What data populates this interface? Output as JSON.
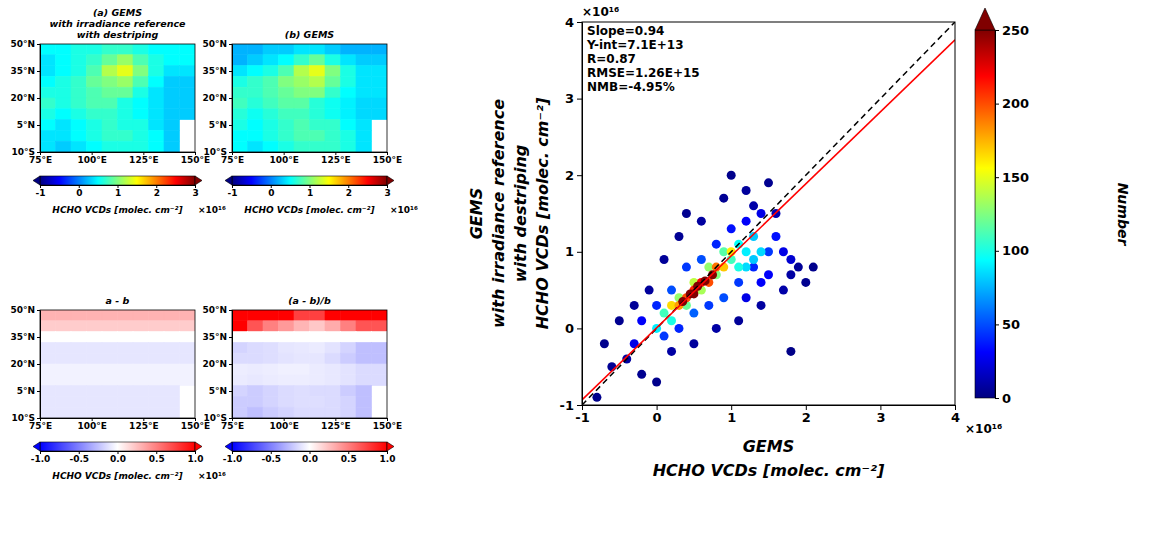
{
  "chart_data": [
    {
      "type": "heatmap",
      "title": [
        "(a) GEMS",
        "with irradiance reference",
        "with destriping"
      ],
      "lon_edges": [
        75,
        82.5,
        90,
        97.5,
        105,
        112.5,
        120,
        127.5,
        135,
        142.5,
        150
      ],
      "lat_edges": [
        50,
        44,
        38,
        32,
        26,
        20,
        14,
        8,
        2,
        -4,
        -10
      ],
      "values": [
        [
          0.5,
          0.5,
          0.6,
          0.6,
          0.7,
          0.7,
          0.6,
          0.5,
          0.5,
          0.5
        ],
        [
          0.4,
          0.5,
          0.6,
          0.7,
          0.9,
          1.1,
          0.8,
          0.6,
          0.5,
          0.5
        ],
        [
          0.4,
          0.5,
          0.6,
          0.8,
          1.2,
          1.4,
          1.0,
          0.6,
          0.4,
          0.4
        ],
        [
          0.5,
          0.6,
          0.7,
          0.9,
          1.0,
          1.1,
          0.8,
          0.5,
          0.3,
          0.3
        ],
        [
          0.6,
          0.6,
          0.7,
          0.8,
          0.9,
          0.9,
          0.6,
          0.4,
          0.3,
          0.3
        ],
        [
          0.7,
          0.6,
          0.7,
          0.8,
          0.8,
          0.6,
          0.5,
          0.4,
          0.3,
          0.3
        ],
        [
          0.6,
          0.5,
          0.6,
          0.7,
          0.7,
          0.6,
          0.5,
          0.4,
          0.3,
          0.3
        ],
        [
          0.5,
          0.4,
          0.5,
          0.6,
          0.7,
          0.6,
          0.6,
          0.4,
          0.3,
          null
        ],
        [
          0.4,
          0.4,
          0.5,
          0.6,
          0.7,
          0.7,
          0.6,
          0.5,
          0.3,
          null
        ],
        [
          0.4,
          0.3,
          0.4,
          0.5,
          0.6,
          0.6,
          0.6,
          0.5,
          0.3,
          null
        ]
      ],
      "xlim": [
        75,
        150
      ],
      "ylim": [
        -10,
        50
      ],
      "xticks": [
        {
          "value": 75,
          "label": "75°E"
        },
        {
          "value": 100,
          "label": "100°E"
        },
        {
          "value": 125,
          "label": "125°E"
        },
        {
          "value": 150,
          "label": "150°E"
        }
      ],
      "yticks": [
        {
          "value": -10,
          "label": "10°S"
        },
        {
          "value": 5,
          "label": "5°N"
        },
        {
          "value": 20,
          "label": "20°N"
        },
        {
          "value": 35,
          "label": "35°N"
        },
        {
          "value": 50,
          "label": "50°N"
        }
      ],
      "colorbar": {
        "range": [
          -1,
          3
        ],
        "ticks": [
          -1,
          0,
          1,
          2,
          3
        ],
        "label": "HCHO VCDs [molec. cm⁻²]",
        "multiplier": "×10¹⁶"
      }
    },
    {
      "type": "heatmap",
      "title": [
        "(b) GEMS"
      ],
      "lon_edges": [
        75,
        82.5,
        90,
        97.5,
        105,
        112.5,
        120,
        127.5,
        135,
        142.5,
        150
      ],
      "lat_edges": [
        50,
        44,
        38,
        32,
        26,
        20,
        14,
        8,
        2,
        -4,
        -10
      ],
      "values": [
        [
          0.2,
          0.2,
          0.3,
          0.3,
          0.4,
          0.4,
          0.3,
          0.2,
          0.2,
          0.2
        ],
        [
          0.2,
          0.3,
          0.4,
          0.5,
          0.7,
          0.9,
          0.6,
          0.4,
          0.3,
          0.3
        ],
        [
          0.4,
          0.5,
          0.6,
          0.8,
          1.2,
          1.4,
          1.0,
          0.6,
          0.4,
          0.4
        ],
        [
          0.6,
          0.7,
          0.8,
          1.0,
          1.1,
          1.2,
          0.9,
          0.6,
          0.4,
          0.4
        ],
        [
          0.7,
          0.7,
          0.8,
          0.9,
          1.0,
          1.0,
          0.7,
          0.5,
          0.4,
          0.4
        ],
        [
          0.75,
          0.65,
          0.75,
          0.85,
          0.85,
          0.65,
          0.55,
          0.45,
          0.35,
          0.35
        ],
        [
          0.65,
          0.55,
          0.65,
          0.75,
          0.75,
          0.65,
          0.55,
          0.45,
          0.35,
          0.35
        ],
        [
          0.6,
          0.5,
          0.6,
          0.7,
          0.8,
          0.7,
          0.7,
          0.5,
          0.4,
          null
        ],
        [
          0.5,
          0.5,
          0.6,
          0.7,
          0.8,
          0.8,
          0.7,
          0.6,
          0.4,
          null
        ],
        [
          0.5,
          0.4,
          0.5,
          0.6,
          0.7,
          0.7,
          0.7,
          0.6,
          0.4,
          null
        ]
      ],
      "xlim": [
        75,
        150
      ],
      "ylim": [
        -10,
        50
      ],
      "xticks": [
        {
          "value": 75,
          "label": "75°E"
        },
        {
          "value": 100,
          "label": "100°E"
        },
        {
          "value": 125,
          "label": "125°E"
        },
        {
          "value": 150,
          "label": "150°E"
        }
      ],
      "yticks": [
        {
          "value": -10,
          "label": "10°S"
        },
        {
          "value": 5,
          "label": "5°N"
        },
        {
          "value": 20,
          "label": "20°N"
        },
        {
          "value": 35,
          "label": "35°N"
        },
        {
          "value": 50,
          "label": "50°N"
        }
      ],
      "colorbar": {
        "range": [
          -1,
          3
        ],
        "ticks": [
          -1,
          0,
          1,
          2,
          3
        ],
        "label": "HCHO VCDs [molec. cm⁻²]",
        "multiplier": "×10¹⁶"
      }
    },
    {
      "type": "heatmap",
      "title": [
        "a - b"
      ],
      "lon_edges": [
        75,
        82.5,
        90,
        97.5,
        105,
        112.5,
        120,
        127.5,
        135,
        142.5,
        150
      ],
      "lat_edges": [
        50,
        44,
        38,
        32,
        26,
        20,
        14,
        8,
        2,
        -4,
        -10
      ],
      "values": [
        [
          0.3,
          0.3,
          0.3,
          0.3,
          0.3,
          0.3,
          0.3,
          0.3,
          0.3,
          0.3
        ],
        [
          0.2,
          0.2,
          0.2,
          0.2,
          0.2,
          0.2,
          0.2,
          0.2,
          0.2,
          0.2
        ],
        [
          0,
          0,
          0,
          0,
          0,
          0,
          0,
          0,
          0,
          0
        ],
        [
          -0.1,
          -0.1,
          -0.1,
          -0.1,
          -0.1,
          -0.1,
          -0.1,
          -0.1,
          -0.1,
          -0.1
        ],
        [
          -0.1,
          -0.1,
          -0.1,
          -0.1,
          -0.1,
          -0.1,
          -0.1,
          -0.1,
          -0.1,
          -0.1
        ],
        [
          -0.05,
          -0.05,
          -0.05,
          -0.05,
          -0.05,
          -0.05,
          -0.05,
          -0.05,
          -0.05,
          -0.05
        ],
        [
          -0.05,
          -0.05,
          -0.05,
          -0.05,
          -0.05,
          -0.05,
          -0.05,
          -0.05,
          -0.05,
          -0.05
        ],
        [
          -0.1,
          -0.1,
          -0.1,
          -0.1,
          -0.1,
          -0.1,
          -0.1,
          -0.1,
          -0.1,
          null
        ],
        [
          -0.1,
          -0.1,
          -0.1,
          -0.1,
          -0.1,
          -0.1,
          -0.1,
          -0.1,
          -0.1,
          null
        ],
        [
          -0.1,
          -0.1,
          -0.1,
          -0.1,
          -0.1,
          -0.1,
          -0.1,
          -0.1,
          -0.1,
          null
        ]
      ],
      "xlim": [
        75,
        150
      ],
      "ylim": [
        -10,
        50
      ],
      "xticks": [
        {
          "value": 75,
          "label": "75°E"
        },
        {
          "value": 100,
          "label": "100°E"
        },
        {
          "value": 125,
          "label": "125°E"
        },
        {
          "value": 150,
          "label": "150°E"
        }
      ],
      "yticks": [
        {
          "value": -10,
          "label": "10°S"
        },
        {
          "value": 5,
          "label": "5°N"
        },
        {
          "value": 20,
          "label": "20°N"
        },
        {
          "value": 35,
          "label": "35°N"
        },
        {
          "value": 50,
          "label": "50°N"
        }
      ],
      "colorbar": {
        "range": [
          -1,
          1
        ],
        "ticks": [
          {
            "value": -1,
            "label": "-1.0"
          },
          {
            "value": -0.5,
            "label": "-0.5"
          },
          {
            "value": 0,
            "label": "0.0"
          },
          {
            "value": 0.5,
            "label": "0.5"
          },
          {
            "value": 1,
            "label": "1.0"
          }
        ],
        "label": "HCHO VCDs [molec. cm⁻²]",
        "multiplier": "×10¹⁶"
      }
    },
    {
      "type": "heatmap",
      "title": [
        "(a - b)/b"
      ],
      "lon_edges": [
        75,
        82.5,
        90,
        97.5,
        105,
        112.5,
        120,
        127.5,
        135,
        142.5,
        150
      ],
      "lat_edges": [
        50,
        44,
        38,
        32,
        26,
        20,
        14,
        8,
        2,
        -4,
        -10
      ],
      "values": [
        [
          1.5,
          1.5,
          1.0,
          1.0,
          0.75,
          0.75,
          1.0,
          1.5,
          1.5,
          1.5
        ],
        [
          1.0,
          0.67,
          0.5,
          0.4,
          0.29,
          0.22,
          0.33,
          0.5,
          0.67,
          0.67
        ],
        [
          0,
          0,
          0,
          0,
          0,
          0,
          0,
          0,
          0,
          0
        ],
        [
          -0.17,
          -0.14,
          -0.13,
          -0.1,
          -0.09,
          -0.08,
          -0.11,
          -0.17,
          -0.25,
          -0.25
        ],
        [
          -0.14,
          -0.14,
          -0.13,
          -0.11,
          -0.1,
          -0.1,
          -0.14,
          -0.2,
          -0.25,
          -0.25
        ],
        [
          -0.07,
          -0.08,
          -0.07,
          -0.06,
          -0.06,
          -0.08,
          -0.09,
          -0.11,
          -0.14,
          -0.14
        ],
        [
          -0.08,
          -0.09,
          -0.08,
          -0.07,
          -0.07,
          -0.08,
          -0.09,
          -0.11,
          -0.14,
          -0.14
        ],
        [
          -0.17,
          -0.2,
          -0.17,
          -0.14,
          -0.13,
          -0.14,
          -0.14,
          -0.2,
          -0.25,
          null
        ],
        [
          -0.2,
          -0.2,
          -0.17,
          -0.14,
          -0.13,
          -0.13,
          -0.14,
          -0.17,
          -0.25,
          null
        ],
        [
          -0.2,
          -0.25,
          -0.2,
          -0.17,
          -0.14,
          -0.14,
          -0.14,
          -0.17,
          -0.25,
          null
        ]
      ],
      "xlim": [
        75,
        150
      ],
      "ylim": [
        -10,
        50
      ],
      "xticks": [
        {
          "value": 75,
          "label": "75°E"
        },
        {
          "value": 100,
          "label": "100°E"
        },
        {
          "value": 125,
          "label": "125°E"
        },
        {
          "value": 150,
          "label": "150°E"
        }
      ],
      "yticks": [
        {
          "value": -10,
          "label": "10°S"
        },
        {
          "value": 5,
          "label": "5°N"
        },
        {
          "value": 20,
          "label": "20°N"
        },
        {
          "value": 35,
          "label": "35°N"
        },
        {
          "value": 50,
          "label": "50°N"
        }
      ],
      "colorbar": {
        "range": [
          -1,
          1
        ],
        "ticks": [
          {
            "value": -1,
            "label": "-1.0"
          },
          {
            "value": -0.5,
            "label": "-0.5"
          },
          {
            "value": 0,
            "label": "0.0"
          },
          {
            "value": 0.5,
            "label": "0.5"
          },
          {
            "value": 1,
            "label": "1.0"
          }
        ]
      }
    },
    {
      "type": "scatter",
      "x_label": [
        "GEMS",
        "HCHO VCDs [molec. cm⁻²]"
      ],
      "y_label": [
        "GEMS",
        "with irradiance reference",
        "with destriping",
        "HCHO VCDs [molec. cm⁻²]"
      ],
      "x": [
        -0.8,
        -0.6,
        -0.5,
        -0.7,
        -0.4,
        -0.3,
        -0.2,
        -0.1,
        0.0,
        0.1,
        0.2,
        0.3,
        0.4,
        0.5,
        0.6,
        0.8,
        0.9,
        1.0,
        1.1,
        1.2,
        1.3,
        1.4,
        1.5,
        1.6,
        1.7,
        1.8,
        1.9,
        2.0,
        2.1,
        1.8,
        -0.3,
        -0.2,
        0.0,
        0.1,
        0.2,
        0.3,
        0.4,
        0.5,
        0.6,
        0.7,
        0.8,
        0.9,
        1.0,
        1.1,
        1.2,
        1.3,
        1.4,
        1.5,
        1.6,
        1.7,
        1.5,
        1.8,
        1.4,
        1.2,
        0.0,
        0.1,
        0.2,
        0.3,
        0.4,
        0.5,
        0.6,
        0.7,
        0.8,
        0.9,
        1.0,
        1.1,
        1.2,
        1.3,
        1.2,
        1.3,
        1.4,
        1.1,
        0.2,
        0.3,
        0.4,
        0.5,
        0.6,
        0.7,
        0.8,
        0.9,
        1.0,
        0.35,
        0.45,
        0.55,
        0.65,
        0.75,
        0.5
      ],
      "y": [
        -0.9,
        -0.5,
        0.1,
        -0.2,
        -0.4,
        0.3,
        -0.6,
        0.5,
        -0.7,
        0.9,
        -0.3,
        1.2,
        1.5,
        -0.2,
        1.4,
        0.0,
        1.7,
        2.0,
        0.1,
        1.8,
        1.6,
        0.3,
        1.9,
        1.5,
        0.5,
        0.7,
        0.8,
        0.6,
        0.8,
        -0.3,
        -0.2,
        0.1,
        0.3,
        -0.1,
        0.5,
        0.0,
        0.8,
        0.2,
        0.9,
        0.3,
        1.1,
        0.4,
        1.3,
        0.6,
        1.4,
        0.8,
        1.5,
        0.7,
        1.2,
        1.0,
        1.0,
        0.9,
        0.6,
        0.4,
        0.0,
        0.2,
        0.1,
        0.4,
        0.3,
        0.6,
        0.5,
        0.8,
        0.7,
        1.0,
        0.9,
        1.1,
        1.0,
        1.2,
        0.8,
        0.9,
        1.0,
        0.8,
        0.3,
        0.3,
        0.4,
        0.5,
        0.6,
        0.6,
        0.8,
        0.8,
        1.0,
        0.35,
        0.45,
        0.55,
        0.62,
        0.7,
        0.45
      ],
      "number": [
        3,
        5,
        4,
        3,
        8,
        6,
        4,
        7,
        3,
        6,
        9,
        5,
        4,
        7,
        8,
        9,
        5,
        3,
        6,
        7,
        10,
        8,
        4,
        12,
        10,
        9,
        6,
        4,
        3,
        2,
        25,
        30,
        40,
        45,
        50,
        40,
        45,
        55,
        50,
        45,
        40,
        50,
        35,
        45,
        30,
        40,
        25,
        30,
        35,
        25,
        45,
        20,
        30,
        25,
        90,
        110,
        100,
        130,
        120,
        140,
        135,
        130,
        125,
        115,
        110,
        95,
        90,
        80,
        85,
        80,
        85,
        100,
        165,
        180,
        200,
        210,
        220,
        200,
        190,
        170,
        160,
        260,
        280,
        270,
        265,
        255,
        275
      ],
      "xlim": [
        -1,
        4
      ],
      "ylim": [
        -1,
        4
      ],
      "xticks": [
        -1,
        0,
        1,
        2,
        3,
        4
      ],
      "yticks": [
        -1,
        0,
        1,
        2,
        3,
        4
      ],
      "x_multiplier": "×10¹⁶",
      "y_multiplier": "×10¹⁶",
      "annotations": [
        "Slope=0.94",
        "Y-int=7.1E+13",
        "R=0.87",
        "RMSE=1.26E+15",
        "NMB=-4.95%"
      ],
      "fit": {
        "slope": 0.94,
        "intercept": 0.0071
      },
      "colorbar": {
        "range": [
          0,
          250
        ],
        "ticks": [
          0,
          50,
          100,
          150,
          200,
          250
        ],
        "label": "Number"
      }
    }
  ]
}
